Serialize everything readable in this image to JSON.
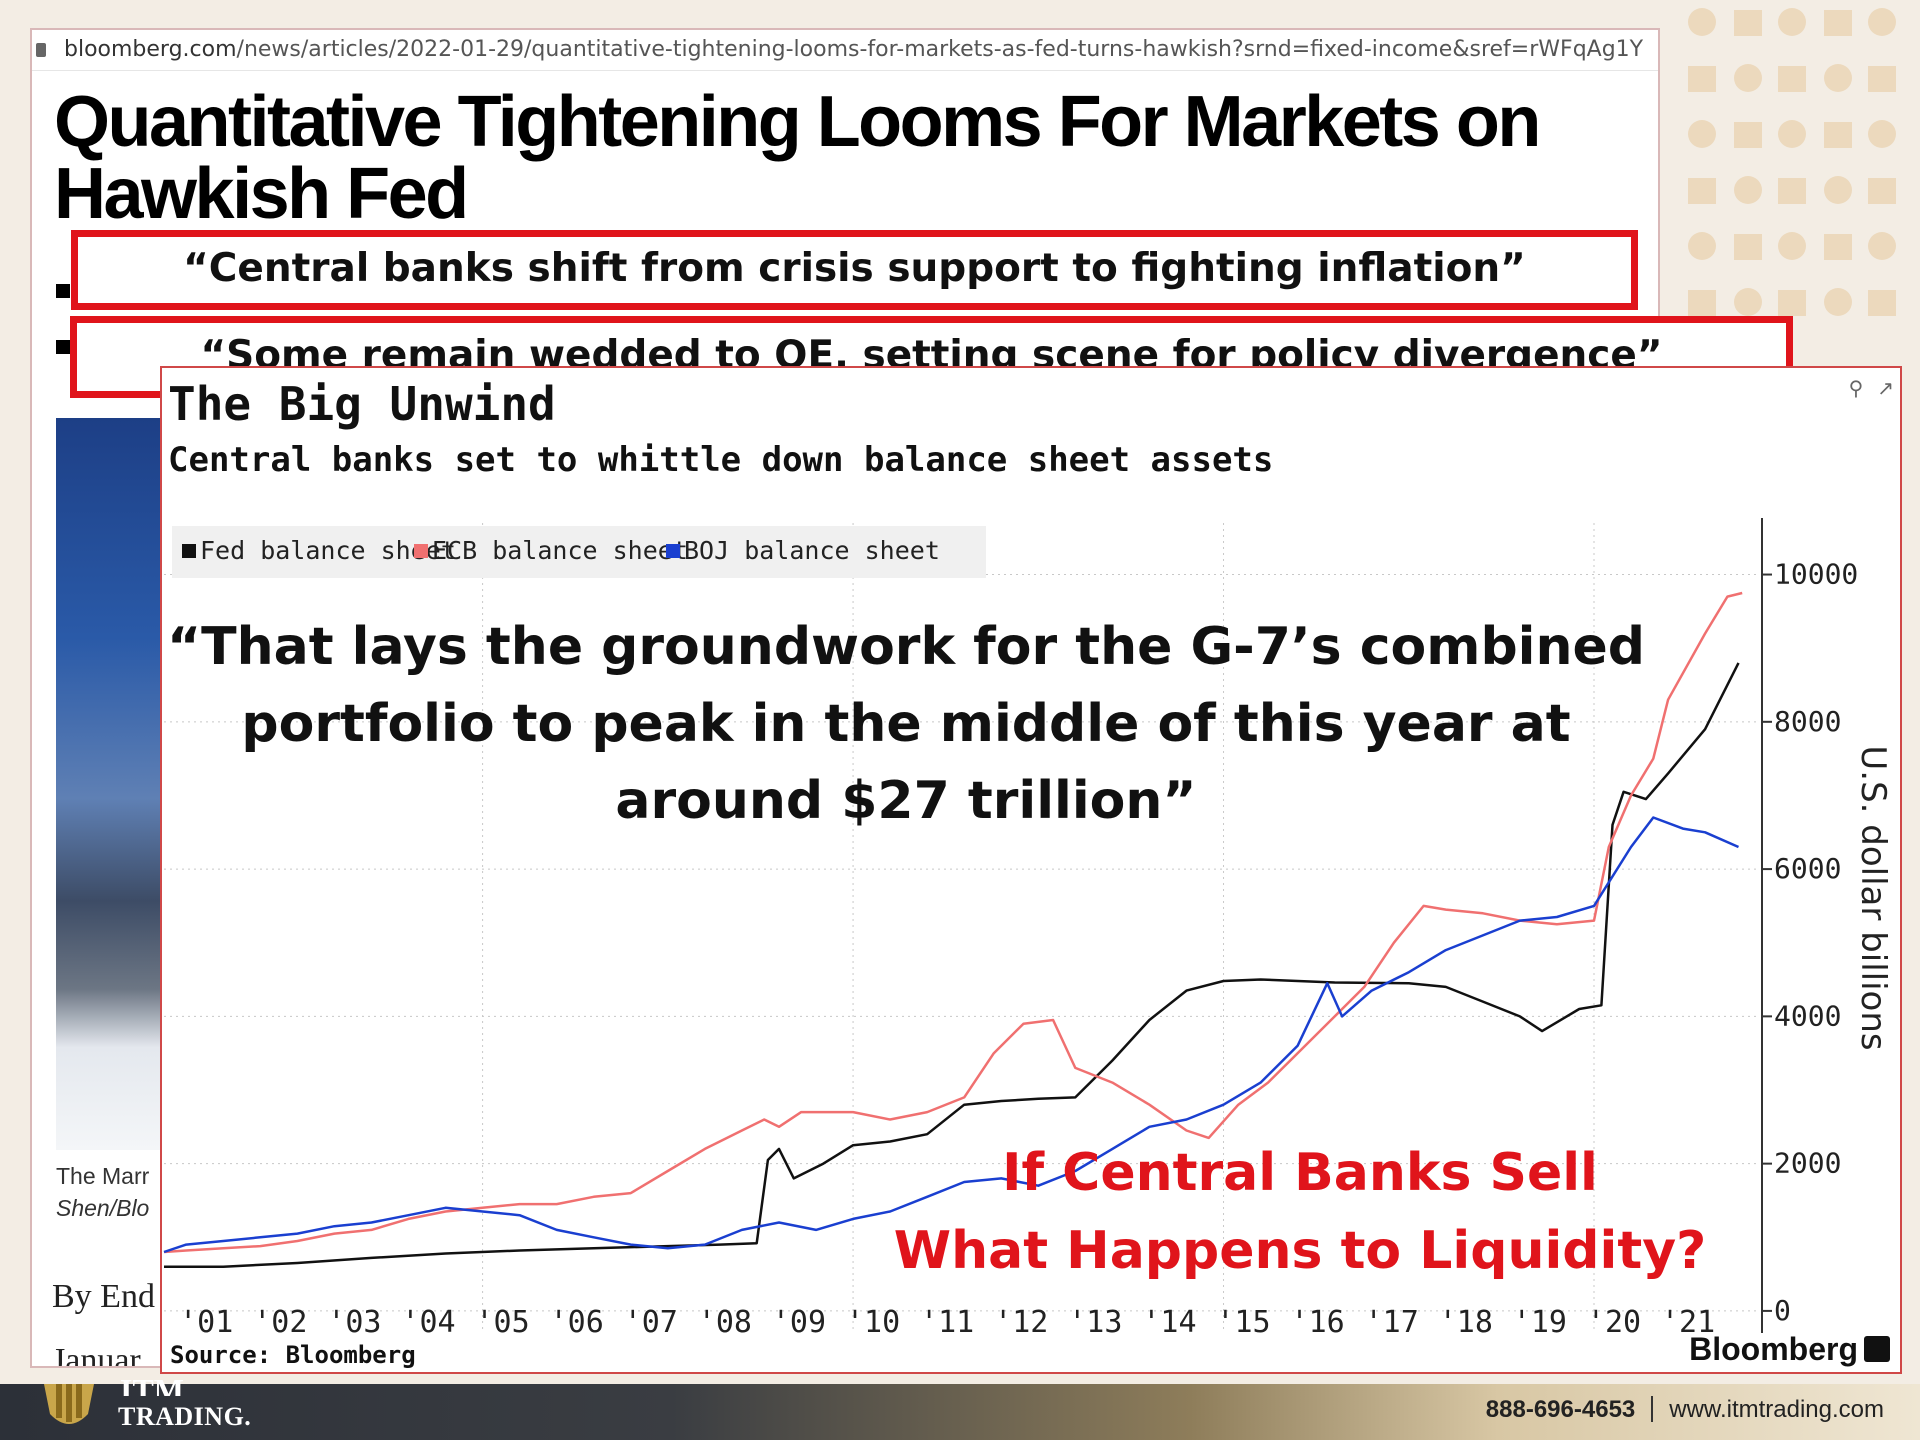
{
  "browser": {
    "url_host": "bloomberg.com",
    "url_path": "/news/articles/2022-01-29/quantitative-tightening-looms-for-markets-as-fed-turns-hawkish?srnd=fixed-income&sref=rWFqAg1Y"
  },
  "article": {
    "headline_line1": "Quantitative Tightening Looms For Markets on",
    "headline_line2": "Hawkish Fed",
    "caption_line1": "The Marr",
    "caption_line2": "Shen/Blo",
    "byline": "By End",
    "date": "Januar"
  },
  "callouts": {
    "quote1": "“Central banks shift from crisis support to fighting inflation”",
    "quote2": "“Some remain wedded to QE, setting scene for policy divergence”"
  },
  "overlay": {
    "quote_line1": "“That lays the groundwork for the G-7’s combined",
    "quote_line2": "portfolio to peak in the middle of this year at",
    "quote_line3": "around $27 trillion”",
    "question_line1": "If Central Banks Sell",
    "question_line2": "What Happens to Liquidity?"
  },
  "footer": {
    "logo_top": "ITM",
    "logo_text": "TRADING.",
    "phone": "888-696-4653",
    "website": "www.itmtrading.com"
  },
  "colors": {
    "accent_red": "#e0141b",
    "fed": "#111111",
    "ecb": "#f07070",
    "boj": "#1a3fd0"
  },
  "chart_data": {
    "type": "line",
    "title": "The Big Unwind",
    "subtitle": "Central banks set to whittle down balance sheet assets",
    "ylabel": "U.S. dollar billions",
    "source": "Source: Bloomberg",
    "brand": "Bloomberg",
    "y_axis_position": "right",
    "ylim": [
      -300,
      10700
    ],
    "yticks": [
      0,
      2000,
      4000,
      6000,
      8000,
      10000
    ],
    "xlim": [
      2000.7,
      2022.2
    ],
    "xticks": [
      2001,
      2002,
      2003,
      2004,
      2005,
      2006,
      2007,
      2008,
      2009,
      2010,
      2011,
      2012,
      2013,
      2014,
      2015,
      2016,
      2017,
      2018,
      2019,
      2020,
      2021
    ],
    "xtick_labels": [
      "'01",
      "'02",
      "'03",
      "'04",
      "'05",
      "'06",
      "'07",
      "'08",
      "'09",
      "'10",
      "'11",
      "'12",
      "'13",
      "'14",
      "'15",
      "'16",
      "'17",
      "'18",
      "'19",
      "'20",
      "'21"
    ],
    "grid": true,
    "legend_position": "top-left",
    "series": [
      {
        "name": "Fed balance sheet",
        "color": "#111111",
        "points": [
          [
            2000.7,
            600
          ],
          [
            2001.5,
            600
          ],
          [
            2002.5,
            650
          ],
          [
            2003.5,
            720
          ],
          [
            2004.5,
            780
          ],
          [
            2005.5,
            820
          ],
          [
            2006.5,
            850
          ],
          [
            2007.5,
            880
          ],
          [
            2008.2,
            900
          ],
          [
            2008.7,
            920
          ],
          [
            2008.85,
            2050
          ],
          [
            2009.0,
            2200
          ],
          [
            2009.2,
            1800
          ],
          [
            2009.4,
            1900
          ],
          [
            2009.6,
            2000
          ],
          [
            2010.0,
            2250
          ],
          [
            2010.5,
            2300
          ],
          [
            2011.0,
            2400
          ],
          [
            2011.5,
            2800
          ],
          [
            2012.0,
            2850
          ],
          [
            2012.5,
            2880
          ],
          [
            2013.0,
            2900
          ],
          [
            2013.5,
            3400
          ],
          [
            2014.0,
            3950
          ],
          [
            2014.5,
            4350
          ],
          [
            2015.0,
            4480
          ],
          [
            2015.5,
            4500
          ],
          [
            2016.5,
            4460
          ],
          [
            2017.5,
            4450
          ],
          [
            2018.0,
            4400
          ],
          [
            2018.5,
            4200
          ],
          [
            2019.0,
            4000
          ],
          [
            2019.3,
            3800
          ],
          [
            2019.8,
            4100
          ],
          [
            2020.1,
            4150
          ],
          [
            2020.25,
            6600
          ],
          [
            2020.4,
            7050
          ],
          [
            2020.7,
            6950
          ],
          [
            2021.0,
            7300
          ],
          [
            2021.5,
            7900
          ],
          [
            2021.95,
            8800
          ]
        ]
      },
      {
        "name": "ECB balance sheet",
        "color": "#f07070",
        "points": [
          [
            2000.7,
            800
          ],
          [
            2001.0,
            820
          ],
          [
            2001.5,
            850
          ],
          [
            2002.0,
            880
          ],
          [
            2002.5,
            950
          ],
          [
            2003.0,
            1050
          ],
          [
            2003.5,
            1100
          ],
          [
            2004.0,
            1250
          ],
          [
            2004.5,
            1350
          ],
          [
            2005.0,
            1400
          ],
          [
            2005.5,
            1450
          ],
          [
            2006.0,
            1450
          ],
          [
            2006.5,
            1550
          ],
          [
            2007.0,
            1600
          ],
          [
            2007.5,
            1900
          ],
          [
            2008.0,
            2200
          ],
          [
            2008.5,
            2450
          ],
          [
            2008.8,
            2600
          ],
          [
            2009.0,
            2500
          ],
          [
            2009.3,
            2700
          ],
          [
            2010.0,
            2700
          ],
          [
            2010.5,
            2600
          ],
          [
            2011.0,
            2700
          ],
          [
            2011.5,
            2900
          ],
          [
            2011.9,
            3500
          ],
          [
            2012.3,
            3900
          ],
          [
            2012.7,
            3950
          ],
          [
            2013.0,
            3300
          ],
          [
            2013.5,
            3100
          ],
          [
            2014.0,
            2800
          ],
          [
            2014.5,
            2450
          ],
          [
            2014.8,
            2350
          ],
          [
            2015.2,
            2800
          ],
          [
            2015.6,
            3100
          ],
          [
            2016.0,
            3500
          ],
          [
            2016.5,
            4000
          ],
          [
            2016.9,
            4400
          ],
          [
            2017.3,
            5000
          ],
          [
            2017.7,
            5500
          ],
          [
            2018.0,
            5450
          ],
          [
            2018.5,
            5400
          ],
          [
            2019.0,
            5300
          ],
          [
            2019.5,
            5250
          ],
          [
            2020.0,
            5300
          ],
          [
            2020.2,
            6300
          ],
          [
            2020.5,
            7000
          ],
          [
            2020.8,
            7500
          ],
          [
            2021.0,
            8300
          ],
          [
            2021.5,
            9200
          ],
          [
            2021.8,
            9700
          ],
          [
            2022.0,
            9750
          ]
        ]
      },
      {
        "name": "BOJ balance sheet",
        "color": "#1a3fd0",
        "points": [
          [
            2000.7,
            800
          ],
          [
            2001.0,
            900
          ],
          [
            2001.5,
            950
          ],
          [
            2002.0,
            1000
          ],
          [
            2002.5,
            1050
          ],
          [
            2003.0,
            1150
          ],
          [
            2003.5,
            1200
          ],
          [
            2004.0,
            1300
          ],
          [
            2004.5,
            1400
          ],
          [
            2005.0,
            1350
          ],
          [
            2005.5,
            1300
          ],
          [
            2006.0,
            1100
          ],
          [
            2006.5,
            1000
          ],
          [
            2007.0,
            900
          ],
          [
            2007.5,
            850
          ],
          [
            2008.0,
            900
          ],
          [
            2008.5,
            1100
          ],
          [
            2009.0,
            1200
          ],
          [
            2009.5,
            1100
          ],
          [
            2010.0,
            1250
          ],
          [
            2010.5,
            1350
          ],
          [
            2011.0,
            1550
          ],
          [
            2011.5,
            1750
          ],
          [
            2012.0,
            1800
          ],
          [
            2012.5,
            1700
          ],
          [
            2013.0,
            1900
          ],
          [
            2013.5,
            2200
          ],
          [
            2014.0,
            2500
          ],
          [
            2014.5,
            2600
          ],
          [
            2015.0,
            2800
          ],
          [
            2015.5,
            3100
          ],
          [
            2016.0,
            3600
          ],
          [
            2016.4,
            4450
          ],
          [
            2016.6,
            4000
          ],
          [
            2017.0,
            4350
          ],
          [
            2017.5,
            4600
          ],
          [
            2018.0,
            4900
          ],
          [
            2018.5,
            5100
          ],
          [
            2019.0,
            5300
          ],
          [
            2019.5,
            5350
          ],
          [
            2020.0,
            5500
          ],
          [
            2020.5,
            6300
          ],
          [
            2020.8,
            6700
          ],
          [
            2021.2,
            6550
          ],
          [
            2021.5,
            6500
          ],
          [
            2021.95,
            6300
          ]
        ]
      }
    ]
  }
}
